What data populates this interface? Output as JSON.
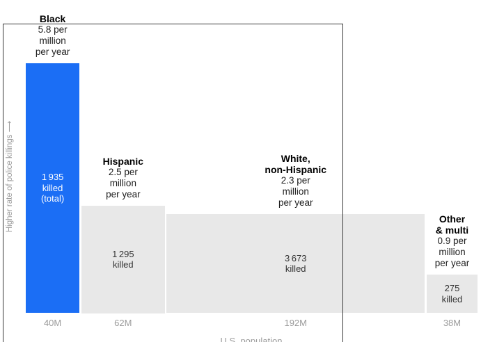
{
  "axes": {
    "y_label": "Higher rate of police killings ⟶",
    "x_label": "U.S. population"
  },
  "chart_data": {
    "type": "bar",
    "variant": "variable-width-bar (bar width ∝ population, bar height ∝ killing rate)",
    "title": "",
    "xlabel": "U.S. population",
    "ylabel": "Higher rate of police killings",
    "rate_unit": "police killings per million per year",
    "x_unit": "millions of people",
    "legend_position": "none",
    "grid": false,
    "ylim": [
      0,
      6.2
    ],
    "groups": [
      {
        "name": "Black",
        "name_lines": [
          "Black"
        ],
        "rate": 5.8,
        "rate_lines": [
          "5.8 per",
          "million",
          "per year"
        ],
        "killed": 1935,
        "killed_lines": [
          "1 935",
          "killed",
          "(total)"
        ],
        "population_millions": 40,
        "population_label": "40M",
        "highlight": true
      },
      {
        "name": "Hispanic",
        "name_lines": [
          "Hispanic"
        ],
        "rate": 2.5,
        "rate_lines": [
          "2.5 per",
          "million",
          "per year"
        ],
        "killed": 1295,
        "killed_lines": [
          "1 295",
          "killed"
        ],
        "population_millions": 62,
        "population_label": "62M",
        "highlight": false
      },
      {
        "name": "White, non-Hispanic",
        "name_lines": [
          "White,",
          "non-Hispanic"
        ],
        "rate": 2.3,
        "rate_lines": [
          "2.3 per",
          "million",
          "per year"
        ],
        "killed": 3673,
        "killed_lines": [
          "3 673",
          "killed"
        ],
        "population_millions": 192,
        "population_label": "192M",
        "highlight": false
      },
      {
        "name": "Other & multi",
        "name_lines": [
          "Other",
          "& multi"
        ],
        "rate": 0.9,
        "rate_lines": [
          "0.9 per",
          "million",
          "per year"
        ],
        "killed": 275,
        "killed_lines": [
          "275",
          "killed"
        ],
        "population_millions": 38,
        "population_label": "38M",
        "highlight": false
      }
    ],
    "colors": {
      "highlight_bar": "#1b6ef5",
      "bar": "#e8e8e8",
      "label_on_highlight": "#ffffff",
      "label_on_bar": "#333333",
      "muted_text": "#9b9b9b",
      "frame": "#383838"
    }
  }
}
